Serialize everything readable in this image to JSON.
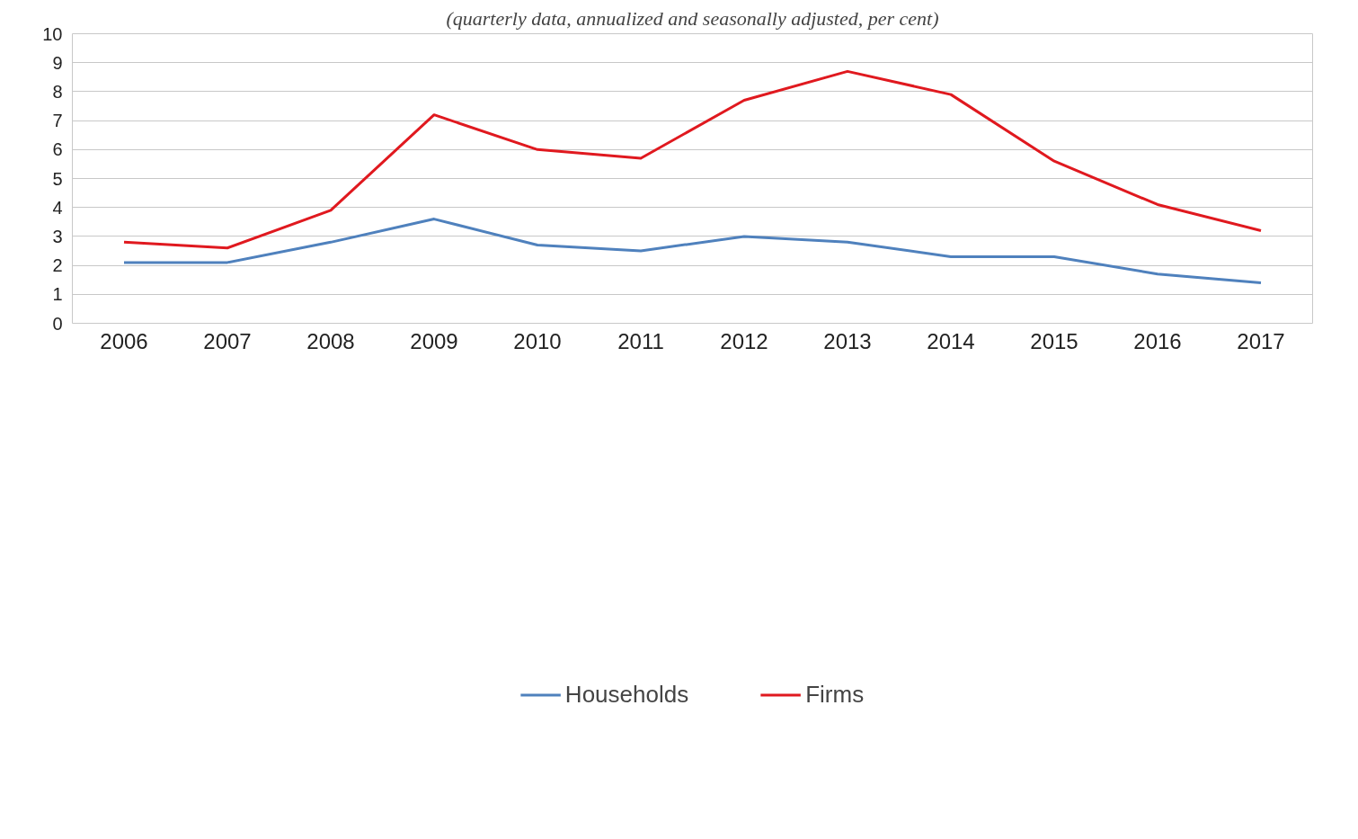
{
  "chart_data": {
    "type": "line",
    "subtitle": "(quarterly data, annualized and seasonally adjusted, per cent)",
    "categories": [
      "2006",
      "2007",
      "2008",
      "2009",
      "2010",
      "2011",
      "2012",
      "2013",
      "2014",
      "2015",
      "2016",
      "2017"
    ],
    "series": [
      {
        "name": "Households",
        "color": "#4f81bd",
        "values": [
          2.1,
          2.1,
          2.8,
          3.6,
          2.7,
          2.5,
          3.0,
          2.8,
          2.3,
          2.3,
          1.7,
          1.4
        ]
      },
      {
        "name": "Firms",
        "color": "#e0191f",
        "values": [
          2.8,
          2.6,
          3.9,
          7.2,
          6.0,
          5.7,
          7.7,
          8.7,
          7.9,
          5.6,
          4.1,
          3.2
        ]
      }
    ],
    "ylim": [
      0,
      10
    ],
    "yticks": [
      0,
      1,
      2,
      3,
      4,
      5,
      6,
      7,
      8,
      9,
      10
    ],
    "grid": "y",
    "legend": "bottom",
    "marker": "none",
    "line_style": "solid"
  }
}
